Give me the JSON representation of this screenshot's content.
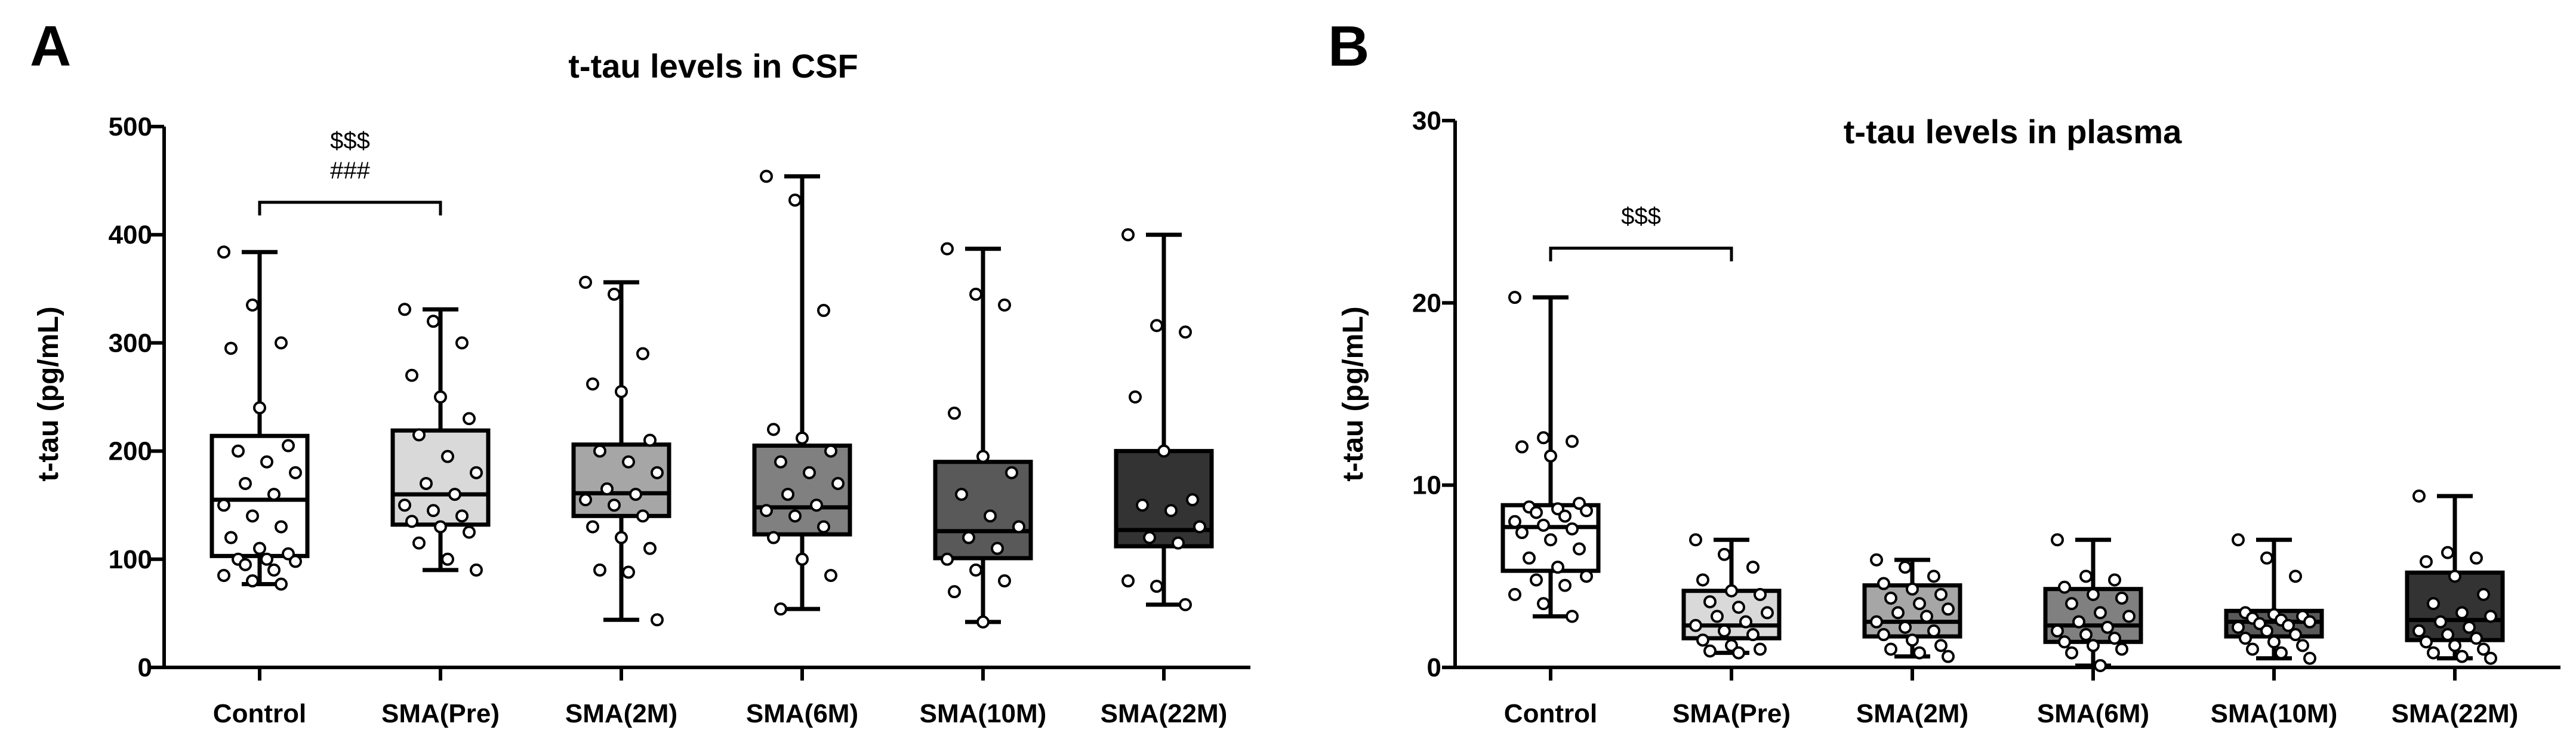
{
  "chart_data": [
    {
      "panel": "A",
      "type": "boxplot",
      "title": "t-tau levels in CSF",
      "xlabel": "",
      "ylabel": "t-tau (pg/mL)",
      "ylim": [
        0,
        500
      ],
      "yticks": [
        0,
        100,
        200,
        300,
        400,
        500
      ],
      "categories": [
        "Control",
        "SMA(Pre)",
        "SMA(2M)",
        "SMA(6M)",
        "SMA(10M)",
        "SMA(22M)"
      ],
      "fills": [
        "#ffffff",
        "#d9d9d9",
        "#a6a6a6",
        "#808080",
        "#595959",
        "#333333"
      ],
      "boxes": [
        {
          "min": 77,
          "q1": 103,
          "median": 155,
          "q3": 214,
          "max": 384
        },
        {
          "min": 90,
          "q1": 132,
          "median": 160,
          "q3": 219,
          "max": 331
        },
        {
          "min": 44,
          "q1": 140,
          "median": 161,
          "q3": 206,
          "max": 356
        },
        {
          "min": 54,
          "q1": 123,
          "median": 148,
          "q3": 205,
          "max": 454
        },
        {
          "min": 42,
          "q1": 101,
          "median": 126,
          "q3": 190,
          "max": 387
        },
        {
          "min": 58,
          "q1": 112,
          "median": 127,
          "q3": 200,
          "max": 400
        }
      ],
      "points": [
        [
          384,
          335,
          300,
          295,
          240,
          205,
          200,
          190,
          180,
          170,
          160,
          150,
          140,
          130,
          120,
          110,
          105,
          100,
          100,
          98,
          95,
          90,
          85,
          80,
          77
        ],
        [
          331,
          320,
          300,
          270,
          250,
          230,
          215,
          195,
          180,
          170,
          160,
          150,
          145,
          140,
          135,
          130,
          125,
          115,
          100,
          90
        ],
        [
          356,
          345,
          290,
          262,
          255,
          210,
          200,
          190,
          180,
          165,
          160,
          155,
          150,
          140,
          130,
          120,
          110,
          90,
          88,
          44
        ],
        [
          454,
          432,
          330,
          220,
          212,
          200,
          190,
          180,
          170,
          160,
          150,
          145,
          140,
          130,
          120,
          100,
          85,
          54
        ],
        [
          387,
          345,
          335,
          235,
          195,
          180,
          160,
          140,
          130,
          120,
          110,
          100,
          90,
          80,
          70,
          42
        ],
        [
          400,
          316,
          310,
          250,
          200,
          155,
          150,
          145,
          130,
          120,
          115,
          80,
          75,
          58
        ]
      ],
      "annotations": [
        {
          "from": "Control",
          "to": "SMA(Pre)",
          "y": 430,
          "labels": [
            "$$$",
            "###"
          ]
        }
      ]
    },
    {
      "panel": "B",
      "type": "boxplot",
      "title": "t-tau levels in plasma",
      "xlabel": "",
      "ylabel": "t-tau (pg/mL)",
      "ylim": [
        0,
        30
      ],
      "yticks": [
        0,
        10,
        20,
        30
      ],
      "categories": [
        "Control",
        "SMA(Pre)",
        "SMA(2M)",
        "SMA(6M)",
        "SMA(10M)",
        "SMA(22M)"
      ],
      "fills": [
        "#ffffff",
        "#d9d9d9",
        "#a6a6a6",
        "#808080",
        "#595959",
        "#333333"
      ],
      "boxes": [
        {
          "min": 2.8,
          "q1": 5.3,
          "median": 7.7,
          "q3": 8.9,
          "max": 20.3
        },
        {
          "min": 0.8,
          "q1": 1.6,
          "median": 2.3,
          "q3": 4.2,
          "max": 7.0
        },
        {
          "min": 0.6,
          "q1": 1.7,
          "median": 2.5,
          "q3": 4.5,
          "max": 5.9
        },
        {
          "min": 0.1,
          "q1": 1.4,
          "median": 2.3,
          "q3": 4.3,
          "max": 7.0
        },
        {
          "min": 0.5,
          "q1": 1.7,
          "median": 2.5,
          "q3": 3.1,
          "max": 7.0
        },
        {
          "min": 0.5,
          "q1": 1.5,
          "median": 2.6,
          "q3": 5.2,
          "max": 9.4
        }
      ],
      "points": [
        [
          20.3,
          12.6,
          12.4,
          12.1,
          11.6,
          9.0,
          8.8,
          8.7,
          8.6,
          8.5,
          8.3,
          8.0,
          7.8,
          7.6,
          7.4,
          7.0,
          6.5,
          6.0,
          5.5,
          5.0,
          4.8,
          4.5,
          4.0,
          3.5,
          2.8
        ],
        [
          7.0,
          6.2,
          5.5,
          4.8,
          4.2,
          4.0,
          3.6,
          3.3,
          3.0,
          2.8,
          2.5,
          2.3,
          2.0,
          1.8,
          1.5,
          1.2,
          1.0,
          0.9,
          0.8
        ],
        [
          5.9,
          5.5,
          5.0,
          4.6,
          4.3,
          4.0,
          3.8,
          3.5,
          3.2,
          3.0,
          2.8,
          2.5,
          2.2,
          2.0,
          1.8,
          1.5,
          1.2,
          1.0,
          0.8,
          0.6
        ],
        [
          7.0,
          5.0,
          4.8,
          4.4,
          4.0,
          3.8,
          3.5,
          3.0,
          2.8,
          2.5,
          2.2,
          2.0,
          1.8,
          1.6,
          1.4,
          1.2,
          1.0,
          0.8,
          0.1
        ],
        [
          7.0,
          6.0,
          5.0,
          3.0,
          2.9,
          2.8,
          2.7,
          2.6,
          2.5,
          2.4,
          2.3,
          2.2,
          2.0,
          1.8,
          1.6,
          1.4,
          1.2,
          1.0,
          0.8,
          0.5
        ],
        [
          9.4,
          6.3,
          6.0,
          5.8,
          5.0,
          4.0,
          3.5,
          3.0,
          2.8,
          2.5,
          2.2,
          2.0,
          1.8,
          1.6,
          1.4,
          1.2,
          1.0,
          0.8,
          0.6,
          0.5
        ]
      ],
      "annotations": [
        {
          "from": "Control",
          "to": "SMA(Pre)",
          "y": 23,
          "labels": [
            "$$$"
          ]
        }
      ]
    }
  ]
}
